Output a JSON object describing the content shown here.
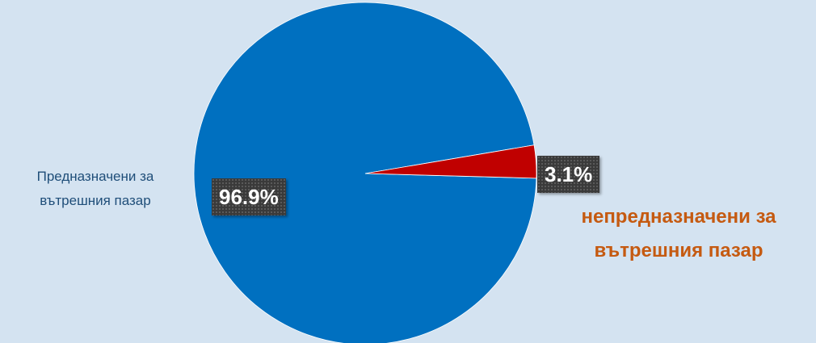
{
  "chart_data": {
    "type": "pie",
    "slices": [
      {
        "label_lines": [
          "Предназначени за",
          "вътрешния пазар"
        ],
        "value": 96.9,
        "value_label": "96.9%",
        "color": "#0070c0"
      },
      {
        "label_lines": [
          "непредназначени за",
          "вътрешния пазар"
        ],
        "value": 3.1,
        "value_label": "3.1%",
        "color": "#c00000"
      }
    ],
    "data_label_background": "#3a3a3a",
    "data_label_text_color": "#ffffff",
    "category_label_colors": [
      "#1f4e79",
      "#c55a11"
    ],
    "background": "#d4e3f1",
    "legend": "none"
  }
}
